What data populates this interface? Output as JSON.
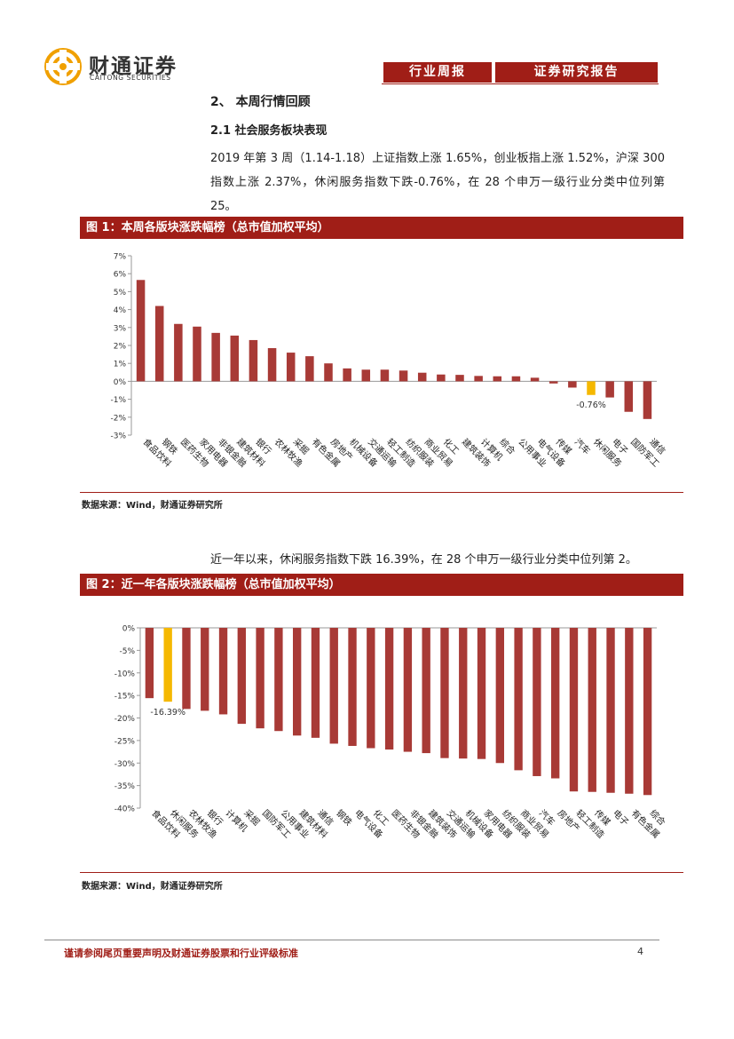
{
  "header": {
    "logo_name": "财通证券",
    "logo_sub": "CAITONG SECURITIES",
    "tab1": "行业周报",
    "tab2": "证券研究报告"
  },
  "section": {
    "title": "2、 本周行情回顾",
    "subtitle": "2.1  社会服务板块表现",
    "para1": "2019 年第 3 周（1.14-1.18）上证指数上涨 1.65%，创业板指上涨 1.52%，沪深 300 指数上涨 2.37%，休闲服务指数下跌-0.76%，在 28 个申万一级行业分类中位列第 25。",
    "para2": "近一年以来，休闲服务指数下跌 16.39%，在 28 个申万一级行业分类中位列第 2。"
  },
  "figure1": {
    "title": "图 1：本周各版块涨跌幅榜（总市值加权平均）",
    "source": "数据来源：Wind，财通证券研究所"
  },
  "figure2": {
    "title": "图 2：近一年各版块涨跌幅榜（总市值加权平均）",
    "source": "数据来源：Wind，财通证券研究所"
  },
  "footer": {
    "disclaimer": "谨请参阅尾页重要声明及财通证券股票和行业评级标准",
    "page": "4"
  },
  "colors": {
    "brand_red": "#a01e17",
    "bar_red": "#a83a36",
    "highlight": "#f5b800"
  },
  "chart_data": [
    {
      "type": "bar",
      "title": "图 1：本周各版块涨跌幅榜（总市值加权平均）",
      "unit": "%",
      "ylim": [
        -3,
        7
      ],
      "yticks": [
        7,
        6,
        5,
        4,
        3,
        2,
        1,
        0,
        -1,
        -2,
        -3
      ],
      "ytick_labels": [
        "7%",
        "6%",
        "5%",
        "4%",
        "3%",
        "2%",
        "1%",
        "0%",
        "-1%",
        "-2%",
        "-3%"
      ],
      "categories": [
        "食品饮料",
        "钢铁",
        "医药生物",
        "家用电器",
        "非银金融",
        "建筑材料",
        "银行",
        "农林牧渔",
        "采掘",
        "有色金属",
        "房地产",
        "机械设备",
        "交通运输",
        "轻工制造",
        "纺织服装",
        "商业贸易",
        "化工",
        "建筑装饰",
        "计算机",
        "综合",
        "公用事业",
        "电气设备",
        "传媒",
        "汽车",
        "休闲服务",
        "电子",
        "国防军工",
        "通信"
      ],
      "values": [
        5.65,
        4.2,
        3.2,
        3.05,
        2.7,
        2.55,
        2.3,
        1.85,
        1.6,
        1.4,
        1.0,
        0.72,
        0.65,
        0.65,
        0.6,
        0.48,
        0.38,
        0.36,
        0.3,
        0.28,
        0.28,
        0.2,
        -0.12,
        -0.35,
        -0.76,
        -0.9,
        -1.7,
        -2.1
      ],
      "highlight": "休闲服务",
      "annotation": "-0.76%"
    },
    {
      "type": "bar",
      "title": "图 2：近一年各版块涨跌幅榜（总市值加权平均）",
      "unit": "%",
      "ylim": [
        -40,
        0
      ],
      "yticks": [
        0,
        -5,
        -10,
        -15,
        -20,
        -25,
        -30,
        -35,
        -40
      ],
      "ytick_labels": [
        "0%",
        "-5%",
        "-10%",
        "-15%",
        "-20%",
        "-25%",
        "-30%",
        "-35%",
        "-40%"
      ],
      "categories": [
        "食品饮料",
        "休闲服务",
        "农林牧渔",
        "银行",
        "计算机",
        "采掘",
        "国防军工",
        "公用事业",
        "建筑材料",
        "通信",
        "钢铁",
        "电气设备",
        "化工",
        "医药生物",
        "非银金融",
        "建筑装饰",
        "交通运输",
        "机械设备",
        "家用电器",
        "纺织服装",
        "商业贸易",
        "汽车",
        "房地产",
        "轻工制造",
        "传媒",
        "电子",
        "有色金属",
        "综合"
      ],
      "values": [
        -15.6,
        -16.39,
        -18.0,
        -18.4,
        -19.2,
        -21.3,
        -22.3,
        -22.9,
        -23.9,
        -24.4,
        -25.7,
        -26.2,
        -26.7,
        -27.0,
        -27.5,
        -27.8,
        -28.9,
        -29.0,
        -29.1,
        -30.0,
        -31.6,
        -32.9,
        -33.4,
        -36.3,
        -36.4,
        -36.6,
        -36.8,
        -37.1
      ],
      "highlight": "休闲服务",
      "annotation": "-16.39%"
    }
  ]
}
